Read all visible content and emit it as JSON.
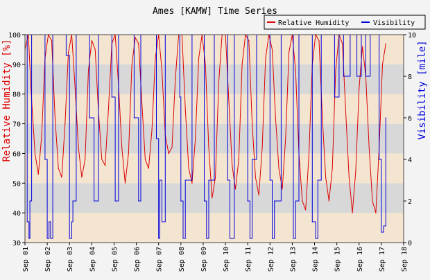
{
  "chart_data": {
    "type": "line",
    "title": "Ames [KAMW] Time Series",
    "ylabel_left": "Relative Humidity [%]",
    "ylabel_right": "Visibility [mile]",
    "xlabel": "",
    "left_ylim": [
      30,
      100
    ],
    "right_ylim": [
      0,
      10
    ],
    "left_ticks": [
      30,
      40,
      50,
      60,
      70,
      80,
      90,
      100
    ],
    "right_ticks": [
      0,
      2,
      4,
      6,
      8,
      10
    ],
    "x_range_days": [
      1,
      18
    ],
    "x_tick_labels": [
      "Sep 01",
      "Sep 02",
      "Sep 03",
      "Sep 04",
      "Sep 05",
      "Sep 06",
      "Sep 07",
      "Sep 08",
      "Sep 09",
      "Sep 10",
      "Sep 11",
      "Sep 12",
      "Sep 13",
      "Sep 14",
      "Sep 15",
      "Sep 16",
      "Sep 17",
      "Sep 18"
    ],
    "grid": "alternating horizontal bands",
    "legend_position": "top-right",
    "colors": {
      "humidity": "#dd0000",
      "visibility": "#0000dd",
      "band_light": "#f3e5d0",
      "band_dark": "#d8d8d8",
      "background": "#f3f3f3"
    },
    "series": [
      {
        "name": "Relative Humidity",
        "axis": "left",
        "x_day": [
          1.0,
          1.15,
          1.3,
          1.45,
          1.6,
          1.75,
          1.9,
          2.05,
          2.2,
          2.35,
          2.5,
          2.65,
          2.8,
          2.95,
          3.1,
          3.25,
          3.4,
          3.55,
          3.7,
          3.85,
          4.0,
          4.15,
          4.3,
          4.45,
          4.6,
          4.75,
          4.9,
          5.05,
          5.2,
          5.35,
          5.5,
          5.65,
          5.8,
          5.95,
          6.1,
          6.25,
          6.4,
          6.55,
          6.7,
          6.85,
          7.0,
          7.15,
          7.3,
          7.45,
          7.6,
          7.75,
          7.9,
          8.05,
          8.2,
          8.35,
          8.5,
          8.65,
          8.8,
          8.95,
          9.1,
          9.25,
          9.4,
          9.55,
          9.7,
          9.85,
          10.0,
          10.15,
          10.3,
          10.45,
          10.6,
          10.75,
          10.9,
          11.05,
          11.2,
          11.35,
          11.5,
          11.65,
          11.8,
          11.95,
          12.1,
          12.25,
          12.4,
          12.55,
          12.7,
          12.85,
          13.0,
          13.15,
          13.3,
          13.45,
          13.6,
          13.75,
          13.9,
          14.05,
          14.2,
          14.35,
          14.5,
          14.65,
          14.8,
          14.95,
          15.1,
          15.25,
          15.4,
          15.55,
          15.7,
          15.85,
          16.0,
          16.15,
          16.3,
          16.45,
          16.6,
          16.75,
          16.9,
          17.05,
          17.2
        ],
        "values": [
          95,
          100,
          78,
          60,
          53,
          66,
          92,
          100,
          98,
          72,
          55,
          52,
          70,
          94,
          100,
          82,
          62,
          52,
          58,
          88,
          98,
          95,
          74,
          58,
          56,
          75,
          97,
          100,
          83,
          62,
          50,
          60,
          90,
          99,
          97,
          77,
          58,
          55,
          68,
          92,
          100,
          88,
          66,
          60,
          62,
          85,
          100,
          100,
          75,
          55,
          50,
          65,
          92,
          100,
          90,
          62,
          45,
          52,
          84,
          100,
          100,
          78,
          56,
          48,
          58,
          90,
          100,
          98,
          70,
          52,
          46,
          62,
          92,
          100,
          95,
          72,
          55,
          48,
          65,
          94,
          100,
          88,
          60,
          44,
          41,
          60,
          90,
          100,
          98,
          72,
          52,
          44,
          55,
          88,
          100,
          97,
          74,
          52,
          40,
          54,
          82,
          96,
          86,
          62,
          44,
          40,
          62,
          90,
          97
        ]
      },
      {
        "name": "Visibility",
        "axis": "right",
        "x_day": [
          1.0,
          1.1,
          1.18,
          1.22,
          1.3,
          1.7,
          1.9,
          2.0,
          2.08,
          2.15,
          2.25,
          2.5,
          2.85,
          3.0,
          3.1,
          3.15,
          3.3,
          3.6,
          3.9,
          4.1,
          4.3,
          4.6,
          4.9,
          5.05,
          5.2,
          5.5,
          5.9,
          6.1,
          6.2,
          6.5,
          6.9,
          7.0,
          7.05,
          7.15,
          7.3,
          7.5,
          7.95,
          8.0,
          8.1,
          8.2,
          8.5,
          9.0,
          9.05,
          9.15,
          9.25,
          9.5,
          9.9,
          10.1,
          10.2,
          10.4,
          10.6,
          11.0,
          11.1,
          11.2,
          11.4,
          11.6,
          12.0,
          12.1,
          12.2,
          12.5,
          12.9,
          13.05,
          13.15,
          13.3,
          13.6,
          13.9,
          14.05,
          14.15,
          14.3,
          14.5,
          14.9,
          15.1,
          15.3,
          15.6,
          15.9,
          16.1,
          16.3,
          16.5,
          16.9,
          17.0,
          17.1,
          17.2
        ],
        "values": [
          10,
          1,
          0.2,
          2,
          10,
          10,
          4,
          0.2,
          1,
          0.2,
          10,
          10,
          9,
          0.2,
          1,
          2,
          10,
          10,
          6,
          2,
          10,
          10,
          7,
          2,
          10,
          10,
          6,
          2,
          10,
          10,
          5,
          0.2,
          3,
          1,
          10,
          10,
          7,
          2,
          0.2,
          3,
          10,
          10,
          2,
          0.2,
          3,
          10,
          10,
          3,
          0.2,
          10,
          10,
          2,
          0.2,
          4,
          10,
          10,
          3,
          0.2,
          2,
          10,
          10,
          0.2,
          2,
          10,
          10,
          1,
          0.2,
          3,
          10,
          10,
          7,
          10,
          8,
          10,
          8,
          10,
          8,
          10,
          4,
          0.5,
          0.8,
          6
        ]
      }
    ]
  }
}
